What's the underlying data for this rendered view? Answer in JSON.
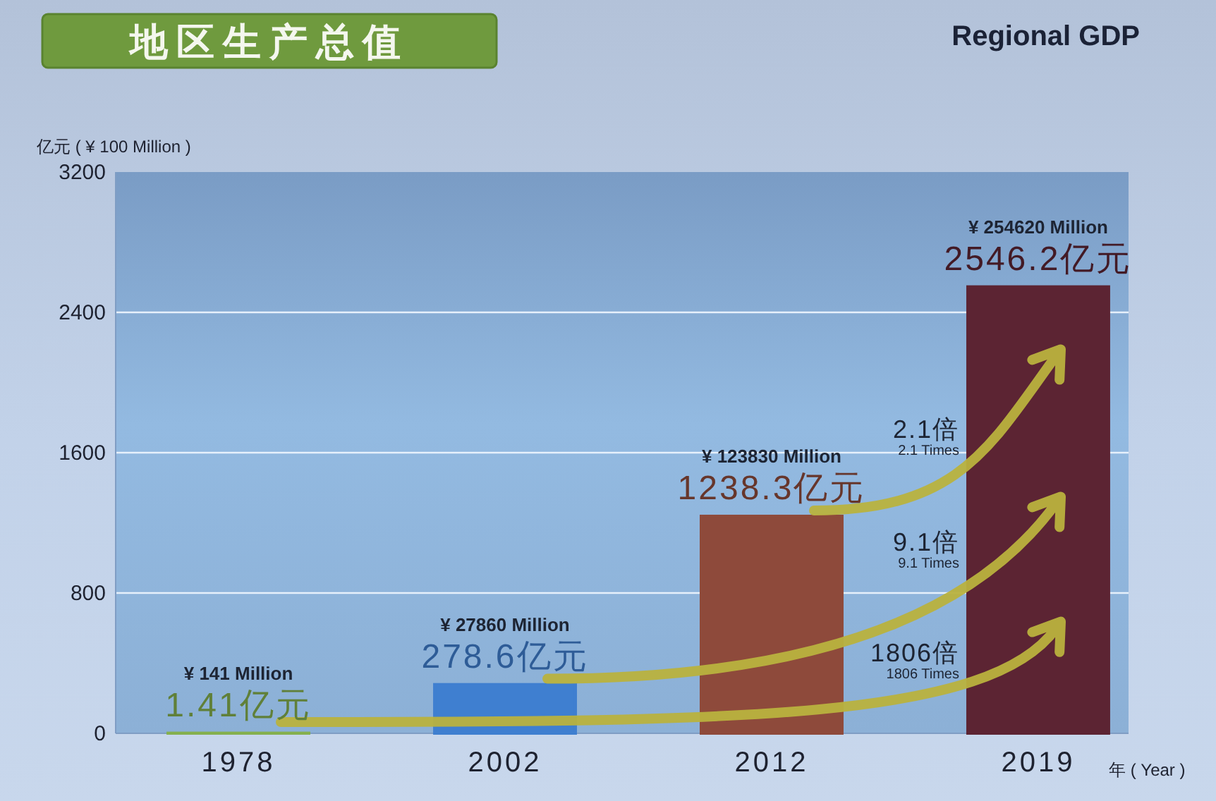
{
  "chart_data": {
    "type": "bar",
    "title": "地区生产总值",
    "subtitle": "Regional GDP",
    "ylabel": "亿元 ( ¥ 100 Million )",
    "xlabel": "年 ( Year )",
    "categories": [
      "1978",
      "2002",
      "2012",
      "2019"
    ],
    "values": [
      1.41,
      278.6,
      1238.3,
      2546.2
    ],
    "colors": [
      "#85b04e",
      "#3f7fd0",
      "#8e4a3b",
      "#5c2433"
    ],
    "value_labels": [
      "1.41亿元",
      "278.6亿元",
      "1238.3亿元",
      "2546.2亿元"
    ],
    "ylim": [
      0,
      3200
    ],
    "yticks": [
      0,
      800,
      1600,
      2400,
      3200
    ],
    "grid": "y",
    "annotations": [
      {
        "text": "¥ 141 Million",
        "x": "1978",
        "y": 1.41
      },
      {
        "text": "¥ 27860 Million",
        "x": "2002",
        "y": 278.6
      },
      {
        "text": "¥ 123830 Million",
        "x": "2012",
        "y": 1238.3
      },
      {
        "text": "¥ 254620 Million",
        "x": "2019",
        "y": 2546.2
      },
      "2.1倍",
      "2.1 Times",
      "9.1倍",
      "9.1 Times",
      "1806倍",
      "1806 Times"
    ]
  }
}
